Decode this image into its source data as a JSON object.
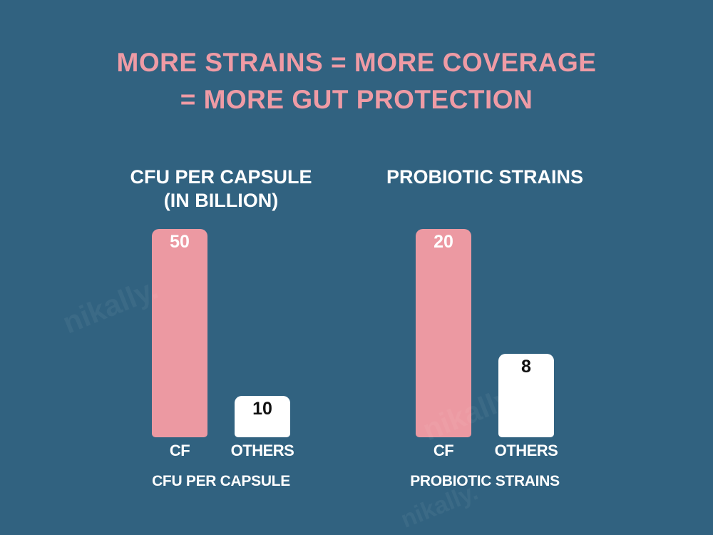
{
  "page": {
    "background_color": "#316280",
    "accent_pink": "#EF9BA5",
    "bar_pink": "#EC99A2",
    "bar_white": "#FFFFFF",
    "text_white": "#FFFFFF",
    "text_black": "#111111"
  },
  "title": {
    "line1": "MORE STRAINS = MORE COVERAGE",
    "line2": "= MORE GUT PROTECTION"
  },
  "watermark": {
    "text": "nikally."
  },
  "chart_data": [
    {
      "type": "bar",
      "title": "CFU PER CAPSULE (IN BILLION)",
      "title_line1": "CFU PER CAPSULE",
      "title_line2": "(IN BILLION)",
      "caption": "CFU PER CAPSULE",
      "categories": [
        "CF",
        "OTHERS"
      ],
      "values": [
        50,
        10
      ],
      "bar_colors": [
        "#EC99A2",
        "#FFFFFF"
      ],
      "value_label_colors": [
        "#FFFFFF",
        "#111111"
      ],
      "xlabel": "",
      "ylabel": "",
      "ylim": [
        0,
        50
      ],
      "grid": false,
      "legend": "none",
      "value_labels_shown": true
    },
    {
      "type": "bar",
      "title": "PROBIOTIC STRAINS",
      "title_line1": "PROBIOTIC STRAINS",
      "title_line2": "",
      "caption": "PROBIOTIC STRAINS",
      "categories": [
        "CF",
        "OTHERS"
      ],
      "values": [
        20,
        8
      ],
      "bar_colors": [
        "#EC99A2",
        "#FFFFFF"
      ],
      "value_label_colors": [
        "#FFFFFF",
        "#111111"
      ],
      "xlabel": "",
      "ylabel": "",
      "ylim": [
        0,
        20
      ],
      "grid": false,
      "legend": "none",
      "value_labels_shown": true
    }
  ]
}
